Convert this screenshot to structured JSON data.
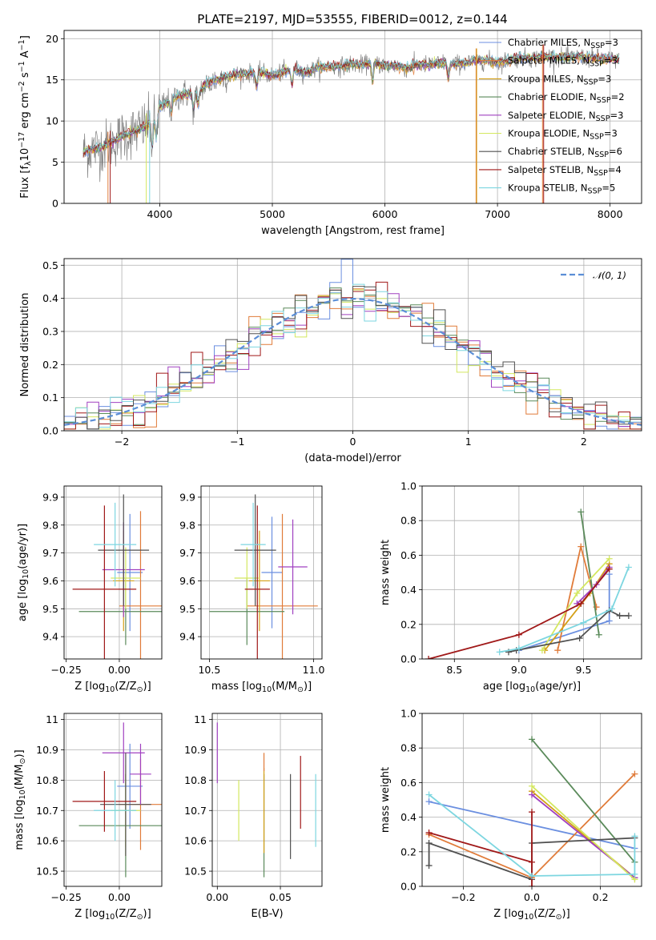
{
  "figure": {
    "title": "PLATE=2197, MJD=53555, FIBERID=0012, z=0.144"
  },
  "colors": {
    "chabrier_miles": "#6b8fe0",
    "salpeter_miles": "#e07b39",
    "kroupa_miles": "#d4a017",
    "chabrier_elodie": "#5a8a5a",
    "salpeter_elodie": "#a040c0",
    "kroupa_elodie": "#d4e860",
    "chabrier_stelib": "#505050",
    "salpeter_stelib": "#a01818",
    "kroupa_stelib": "#7dd6e0",
    "gaussian": "#5b8ed6",
    "grid": "#b0b0b0"
  },
  "chart_data": [
    {
      "id": "spectrum",
      "type": "line",
      "xlabel": "wavelength [Angstrom, rest frame]",
      "ylabel": "Flux [f",
      "ylabel_sub": "λ",
      "ylabel_rest": "10",
      "ylabel_exp": "−17",
      "ylabel_tail": " erg cm",
      "ylabel_exp2": "−2",
      "ylabel_tail2": " s",
      "ylabel_exp3": "−1",
      "ylabel_tail3": " A",
      "ylabel_exp4": "−1",
      "ylabel_end": "]",
      "xlim": [
        3150,
        8280
      ],
      "ylim": [
        0,
        21
      ],
      "xticks": [
        4000,
        5000,
        6000,
        7000,
        8000
      ],
      "yticks": [
        0,
        5,
        10,
        15,
        20
      ],
      "continuum": [
        [
          3320,
          6.2
        ],
        [
          3400,
          6.6
        ],
        [
          3500,
          6.9
        ],
        [
          3600,
          7.6
        ],
        [
          3700,
          8.4
        ],
        [
          3800,
          8.8
        ],
        [
          3900,
          9.6
        ],
        [
          4000,
          11.6
        ],
        [
          4100,
          12.5
        ],
        [
          4200,
          13.3
        ],
        [
          4300,
          13.2
        ],
        [
          4400,
          14.3
        ],
        [
          4500,
          15.0
        ],
        [
          4600,
          15.4
        ],
        [
          4700,
          15.7
        ],
        [
          4800,
          15.8
        ],
        [
          4900,
          15.9
        ],
        [
          5000,
          15.5
        ],
        [
          5100,
          16.0
        ],
        [
          5200,
          16.3
        ],
        [
          5300,
          15.9
        ],
        [
          5400,
          16.5
        ],
        [
          5500,
          16.6
        ],
        [
          5600,
          16.6
        ],
        [
          5700,
          16.9
        ],
        [
          5800,
          16.8
        ],
        [
          5900,
          17.1
        ],
        [
          6000,
          16.7
        ],
        [
          6100,
          16.7
        ],
        [
          6200,
          16.4
        ],
        [
          6300,
          16.9
        ],
        [
          6400,
          16.8
        ],
        [
          6500,
          17.1
        ],
        [
          6600,
          16.9
        ],
        [
          6700,
          17.0
        ],
        [
          6800,
          17.3
        ],
        [
          6900,
          17.4
        ],
        [
          7000,
          17.1
        ],
        [
          7100,
          17.4
        ],
        [
          7200,
          17.7
        ],
        [
          7300,
          17.6
        ],
        [
          7400,
          17.8
        ],
        [
          7500,
          17.8
        ],
        [
          7600,
          17.7
        ],
        [
          7700,
          17.8
        ],
        [
          7800,
          17.7
        ],
        [
          7900,
          17.6
        ],
        [
          8000,
          17.5
        ],
        [
          8080,
          17.5
        ]
      ],
      "legend": [
        {
          "label": "Chabrier MILES, N",
          "sub": "SSP",
          "val": "=3",
          "color": "chabrier_miles"
        },
        {
          "label": "Salpeter MILES, N",
          "sub": "SSP",
          "val": "=3",
          "color": "salpeter_miles"
        },
        {
          "label": "Kroupa MILES, N",
          "sub": "SSP",
          "val": "=3",
          "color": "kroupa_miles"
        },
        {
          "label": "Chabrier ELODIE, N",
          "sub": "SSP",
          "val": "=2",
          "color": "chabrier_elodie"
        },
        {
          "label": "Salpeter ELODIE, N",
          "sub": "SSP",
          "val": "=3",
          "color": "salpeter_elodie"
        },
        {
          "label": "Kroupa ELODIE, N",
          "sub": "SSP",
          "val": "=3",
          "color": "kroupa_elodie"
        },
        {
          "label": "Chabrier STELIB, N",
          "sub": "SSP",
          "val": "=6",
          "color": "chabrier_stelib"
        },
        {
          "label": "Salpeter STELIB, N",
          "sub": "SSP",
          "val": "=4",
          "color": "salpeter_stelib"
        },
        {
          "label": "Kroupa STELIB, N",
          "sub": "SSP",
          "val": "=5",
          "color": "kroupa_stelib"
        }
      ]
    },
    {
      "id": "residuals",
      "type": "line",
      "xlabel": "(data-model)/error",
      "ylabel": "Normed distribution",
      "xlim": [
        -2.5,
        2.5
      ],
      "ylim": [
        0,
        0.52
      ],
      "xticks": [
        -2,
        -1,
        0,
        1,
        2
      ],
      "xtick_labels": [
        "−2",
        "−1",
        "0",
        "1",
        "2"
      ],
      "yticks": [
        0.0,
        0.1,
        0.2,
        0.3,
        0.4,
        0.5
      ],
      "ytick_labels": [
        "0.0",
        "0.1",
        "0.2",
        "0.3",
        "0.4",
        "0.5"
      ],
      "legend_label": "𝒩(0, 1)",
      "histogram_bin_width": 0.1
    },
    {
      "id": "age_vs_Z",
      "type": "scatter",
      "xlabel": "Z [log",
      "xlabel_sub": "10",
      "xlabel_rest": "(Z/Z",
      "xlabel_sub2": "⊙",
      "xlabel_end": ")]",
      "ylabel": "age  [log",
      "ylabel_sub": "10",
      "ylabel_rest": "(age/yr)]",
      "xlim": [
        -0.26,
        0.2
      ],
      "ylim": [
        9.32,
        9.94
      ],
      "xticks": [
        -0.25,
        0.0
      ],
      "xtick_labels": [
        "−0.25",
        "0.00"
      ],
      "yticks": [
        9.4,
        9.5,
        9.6,
        9.7,
        9.8,
        9.9
      ],
      "points": [
        {
          "color": "chabrier_miles",
          "x": 0.05,
          "xerr": 0.06,
          "y": 9.63,
          "yerr": 0.21
        },
        {
          "color": "salpeter_miles",
          "x": 0.1,
          "xerr": 0.1,
          "y": 9.51,
          "yerr": 0.34
        },
        {
          "color": "kroupa_miles",
          "x": 0.02,
          "xerr": 0.05,
          "y": 9.6,
          "yerr": 0.18
        },
        {
          "color": "chabrier_elodie",
          "x": 0.03,
          "xerr": 0.22,
          "y": 9.49,
          "yerr": 0.12
        },
        {
          "color": "salpeter_elodie",
          "x": 0.02,
          "xerr": 0.1,
          "y": 9.64,
          "yerr": 0.17
        },
        {
          "color": "kroupa_elodie",
          "x": 0.03,
          "xerr": 0.07,
          "y": 9.61,
          "yerr": 0.11
        },
        {
          "color": "chabrier_stelib",
          "x": 0.02,
          "xerr": 0.12,
          "y": 9.71,
          "yerr": 0.2
        },
        {
          "color": "salpeter_stelib",
          "x": -0.07,
          "xerr": 0.15,
          "y": 9.57,
          "yerr": 0.3
        },
        {
          "color": "kroupa_stelib",
          "x": -0.02,
          "xerr": 0.1,
          "y": 9.73,
          "yerr": 0.15
        }
      ]
    },
    {
      "id": "age_vs_mass",
      "type": "scatter",
      "xlabel": "mass [log",
      "xlabel_sub": "10",
      "xlabel_rest": "(M/M",
      "xlabel_sub2": "⊙",
      "xlabel_end": ")]",
      "xlim": [
        10.46,
        11.04
      ],
      "ylim": [
        9.32,
        9.94
      ],
      "xticks": [
        10.5,
        11.0
      ],
      "xtick_labels": [
        "10.5",
        "11.0"
      ],
      "yticks": [
        9.4,
        9.5,
        9.6,
        9.7,
        9.8,
        9.9
      ],
      "points": [
        {
          "color": "chabrier_miles",
          "x": 10.8,
          "xerr": 0.05,
          "y": 9.63,
          "yerr": 0.2
        },
        {
          "color": "salpeter_miles",
          "x": 10.85,
          "xerr": 0.17,
          "y": 9.51,
          "yerr": 0.33
        },
        {
          "color": "kroupa_miles",
          "x": 10.74,
          "xerr": 0.05,
          "y": 9.6,
          "yerr": 0.18
        },
        {
          "color": "chabrier_elodie",
          "x": 10.68,
          "xerr": 0.18,
          "y": 9.49,
          "yerr": 0.12
        },
        {
          "color": "salpeter_elodie",
          "x": 10.9,
          "xerr": 0.07,
          "y": 9.65,
          "yerr": 0.17
        },
        {
          "color": "kroupa_elodie",
          "x": 10.68,
          "xerr": 0.06,
          "y": 9.61,
          "yerr": 0.11
        },
        {
          "color": "chabrier_stelib",
          "x": 10.72,
          "xerr": 0.1,
          "y": 9.71,
          "yerr": 0.2
        },
        {
          "color": "salpeter_stelib",
          "x": 10.73,
          "xerr": 0.06,
          "y": 9.57,
          "yerr": 0.3
        },
        {
          "color": "kroupa_stelib",
          "x": 10.71,
          "xerr": 0.06,
          "y": 9.73,
          "yerr": 0.15
        }
      ]
    },
    {
      "id": "weight_vs_age",
      "type": "line",
      "xlabel": "age  [log",
      "xlabel_sub": "10",
      "xlabel_rest": "(age/yr)]",
      "ylabel": "mass weight",
      "xlim": [
        8.25,
        9.95
      ],
      "ylim": [
        0,
        1
      ],
      "xticks": [
        8.5,
        9.0,
        9.5
      ],
      "xtick_labels": [
        "8.5",
        "9.0",
        "9.5"
      ],
      "yticks": [
        0.0,
        0.2,
        0.4,
        0.6,
        0.8,
        1.0
      ],
      "series": [
        {
          "color": "chabrier_miles",
          "x": [
            9.0,
            9.7,
            9.7
          ],
          "y": [
            0.05,
            0.22,
            0.49
          ]
        },
        {
          "color": "salpeter_miles",
          "x": [
            9.3,
            9.48,
            9.6
          ],
          "y": [
            0.05,
            0.65,
            0.3
          ]
        },
        {
          "color": "kroupa_miles",
          "x": [
            9.2,
            9.55,
            9.7
          ],
          "y": [
            0.05,
            0.38,
            0.55
          ]
        },
        {
          "color": "chabrier_elodie",
          "x": [
            9.48,
            9.62
          ],
          "y": [
            0.85,
            0.14
          ]
        },
        {
          "color": "salpeter_elodie",
          "x": [
            9.45,
            9.6,
            9.7
          ],
          "y": [
            0.32,
            0.43,
            0.53
          ]
        },
        {
          "color": "kroupa_elodie",
          "x": [
            9.18,
            9.45,
            9.7
          ],
          "y": [
            0.05,
            0.38,
            0.58
          ]
        },
        {
          "color": "chabrier_stelib",
          "x": [
            8.92,
            8.98,
            9.47,
            9.7,
            9.78,
            9.85
          ],
          "y": [
            0.04,
            0.05,
            0.12,
            0.28,
            0.25,
            0.25
          ]
        },
        {
          "color": "salpeter_stelib",
          "x": [
            8.3,
            9.0,
            9.48,
            9.7
          ],
          "y": [
            0.0,
            0.14,
            0.32,
            0.52
          ]
        },
        {
          "color": "kroupa_stelib",
          "x": [
            8.85,
            9.0,
            9.5,
            9.72,
            9.85
          ],
          "y": [
            0.04,
            0.06,
            0.21,
            0.29,
            0.53
          ]
        }
      ]
    },
    {
      "id": "mass_vs_Z",
      "type": "scatter",
      "xlabel": "Z [log",
      "xlabel_sub": "10",
      "xlabel_rest": "(Z/Z",
      "xlabel_sub2": "⊙",
      "xlabel_end": ")]",
      "ylabel": "mass [log",
      "ylabel_sub": "10",
      "ylabel_rest": "(M/M",
      "ylabel_sub2": "⊙",
      "ylabel_end": ")]",
      "xlim": [
        -0.26,
        0.2
      ],
      "ylim": [
        10.45,
        11.02
      ],
      "xticks": [
        -0.25,
        0.0
      ],
      "xtick_labels": [
        "−0.25",
        "0.00"
      ],
      "yticks": [
        10.5,
        10.6,
        10.7,
        10.8,
        10.9,
        11.0
      ],
      "points": [
        {
          "color": "chabrier_miles",
          "x": 0.05,
          "xerr": 0.06,
          "y": 10.78,
          "yerr": 0.14
        },
        {
          "color": "salpeter_miles",
          "x": 0.1,
          "xerr": 0.1,
          "y": 10.72,
          "yerr": 0.15
        },
        {
          "color": "kroupa_miles",
          "x": 0.03,
          "xerr": 0.05,
          "y": 10.7,
          "yerr": 0.12
        },
        {
          "color": "chabrier_elodie",
          "x": 0.03,
          "xerr": 0.22,
          "y": 10.65,
          "yerr": 0.17
        },
        {
          "color": "salpeter_elodie",
          "x": 0.02,
          "xerr": 0.1,
          "y": 10.89,
          "yerr": 0.1
        },
        {
          "color": "kroupa_elodie",
          "x": 0.03,
          "xerr": 0.07,
          "y": 10.7,
          "yerr": 0.15
        },
        {
          "color": "chabrier_stelib",
          "x": 0.03,
          "xerr": 0.12,
          "y": 10.72,
          "yerr": 0.17
        },
        {
          "color": "salpeter_stelib",
          "x": -0.07,
          "xerr": 0.15,
          "y": 10.73,
          "yerr": 0.1
        },
        {
          "color": "kroupa_stelib",
          "x": -0.02,
          "xerr": 0.1,
          "y": 10.7,
          "yerr": 0.1
        },
        {
          "color": "salpeter_elodie",
          "x": 0.1,
          "xerr": 0.05,
          "y": 10.82,
          "yerr": 0.1
        }
      ]
    },
    {
      "id": "mass_vs_ebv",
      "type": "scatter",
      "xlabel": "E(B-V)",
      "xlim": [
        -0.004,
        0.083
      ],
      "ylim": [
        10.45,
        11.02
      ],
      "xticks": [
        0.0,
        0.05
      ],
      "xtick_labels": [
        "0.00",
        "0.05"
      ],
      "yticks": [
        10.5,
        10.6,
        10.7,
        10.8,
        10.9,
        11.0
      ],
      "points": [
        {
          "color": "salpeter_elodie",
          "x": 0.0,
          "y": 10.89,
          "yerr": 0.1
        },
        {
          "color": "kroupa_elodie",
          "x": 0.017,
          "y": 10.7,
          "yerr": 0.1
        },
        {
          "color": "chabrier_elodie",
          "x": 0.037,
          "y": 10.65,
          "yerr": 0.17
        },
        {
          "color": "kroupa_miles",
          "x": 0.037,
          "y": 10.7,
          "yerr": 0.14
        },
        {
          "color": "salpeter_miles",
          "x": 0.037,
          "y": 10.86,
          "yerr": 0.03
        },
        {
          "color": "salpeter_stelib",
          "x": 0.066,
          "y": 10.76,
          "yerr": 0.12
        },
        {
          "color": "chabrier_stelib",
          "x": 0.058,
          "y": 10.68,
          "yerr": 0.14
        },
        {
          "color": "kroupa_stelib",
          "x": 0.078,
          "y": 10.7,
          "yerr": 0.12
        }
      ]
    },
    {
      "id": "weight_vs_Z",
      "type": "line",
      "xlabel": "Z [log",
      "xlabel_sub": "10",
      "xlabel_rest": "(Z/Z",
      "xlabel_sub2": "⊙",
      "xlabel_end": ")]",
      "ylabel": "mass weight",
      "xlim": [
        -0.32,
        0.32
      ],
      "ylim": [
        0,
        1
      ],
      "xticks": [
        -0.2,
        0.0,
        0.2
      ],
      "xtick_labels": [
        "−0.2",
        "0.0",
        "0.2"
      ],
      "yticks": [
        0.0,
        0.2,
        0.4,
        0.6,
        0.8,
        1.0
      ],
      "series": [
        {
          "color": "chabrier_miles",
          "x": [
            -0.3,
            0.3
          ],
          "y": [
            0.49,
            0.22
          ]
        },
        {
          "color": "salpeter_miles",
          "x": [
            -0.3,
            0.0,
            0.3
          ],
          "y": [
            0.3,
            0.05,
            0.65
          ]
        },
        {
          "color": "kroupa_miles",
          "x": [
            0.0,
            0.3
          ],
          "y": [
            0.55,
            0.05
          ]
        },
        {
          "color": "chabrier_elodie",
          "x": [
            0.0,
            0.3
          ],
          "y": [
            0.85,
            0.14
          ]
        },
        {
          "color": "salpeter_elodie",
          "x": [
            0.0,
            0.3
          ],
          "y": [
            0.53,
            0.05
          ]
        },
        {
          "color": "kroupa_elodie",
          "x": [
            0.0,
            0.3
          ],
          "y": [
            0.58,
            0.04
          ]
        },
        {
          "color": "chabrier_stelib",
          "x": [
            -0.3,
            -0.3,
            0.0,
            0.0,
            0.3
          ],
          "y": [
            0.12,
            0.25,
            0.04,
            0.25,
            0.28
          ]
        },
        {
          "color": "salpeter_stelib",
          "x": [
            -0.3,
            0.0,
            0.0,
            0.0
          ],
          "y": [
            0.31,
            0.14,
            0.0,
            0.43
          ]
        },
        {
          "color": "kroupa_stelib",
          "x": [
            -0.3,
            0.0,
            0.3,
            0.3
          ],
          "y": [
            0.53,
            0.06,
            0.07,
            0.29
          ]
        }
      ]
    }
  ]
}
